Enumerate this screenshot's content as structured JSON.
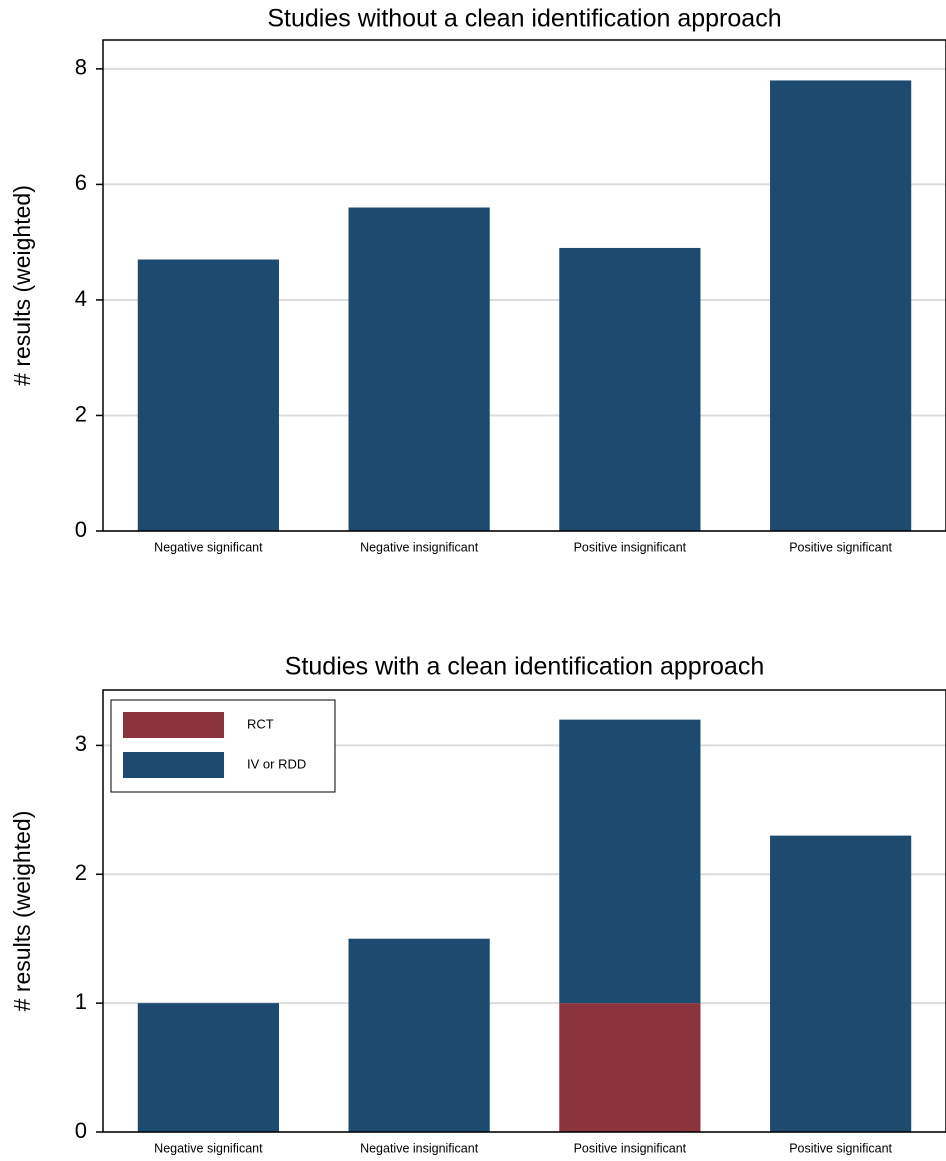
{
  "chart_data": [
    {
      "type": "bar",
      "title": "Studies without a clean identification approach",
      "y_label": "# results (weighted)",
      "categories": [
        "Negative significant",
        "Negative insignificant",
        "Positive insignificant",
        "Positive significant"
      ],
      "values": [
        4.7,
        5.6,
        4.9,
        7.8
      ],
      "color": "#1d4a6f",
      "ylim": [
        0,
        8.5
      ],
      "yticks": [
        0,
        2,
        4,
        6,
        8
      ],
      "grid": true
    },
    {
      "type": "stacked_bar",
      "title": "Studies with a clean identification approach",
      "y_label": "# results (weighted)",
      "categories": [
        "Negative significant",
        "Negative insignificant",
        "Positive insignificant",
        "Positive significant"
      ],
      "series": [
        {
          "name": "RCT",
          "color": "#8c343c",
          "values": [
            0,
            0,
            1,
            0
          ]
        },
        {
          "name": "IV or RDD",
          "color": "#1d4a6f",
          "values": [
            1,
            1.5,
            2.2,
            2.3
          ]
        }
      ],
      "ylim": [
        0,
        3.43
      ],
      "yticks": [
        0,
        1,
        2,
        3
      ],
      "grid": true,
      "legend": "top-left"
    }
  ]
}
